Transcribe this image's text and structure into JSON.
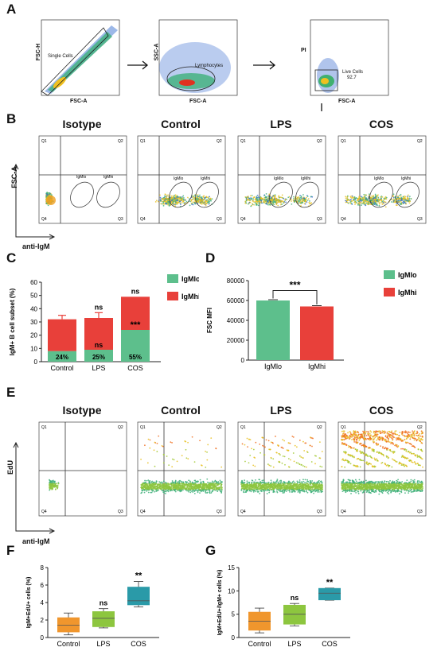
{
  "panels": {
    "A": "A",
    "B": "B",
    "C": "C",
    "D": "D",
    "E": "E",
    "F": "F",
    "G": "G"
  },
  "panelA": {
    "plot1": {
      "ylabel": "FSC-H",
      "xlabel": "FSC-A",
      "gate": "Single Cells"
    },
    "plot2": {
      "ylabel": "SSC-A",
      "xlabel": "FSC-A",
      "gate": "Lymphocytes"
    },
    "plot3": {
      "ylabel": "PI",
      "xlabel": "FSC-A",
      "gate": "Live Cells",
      "gate_value": "92.7"
    }
  },
  "panelB": {
    "titles": [
      "Isotype",
      "Control",
      "LPS",
      "COS"
    ],
    "ylabel": "FSC-A",
    "xlabel": "anti-IgM",
    "quadrants": [
      "Q1",
      "Q2",
      "Q3",
      "Q4"
    ],
    "gates": [
      "IgMlo",
      "IgMhi"
    ]
  },
  "panelE": {
    "titles": [
      "Isotype",
      "Control",
      "LPS",
      "COS"
    ],
    "ylabel": "EdU",
    "xlabel": "anti-IgM",
    "quadrants": [
      "Q1",
      "Q2",
      "Q3",
      "Q4"
    ]
  },
  "chart_data": [
    {
      "id": "C",
      "type": "bar",
      "categories": [
        "Control",
        "LPS",
        "COS"
      ],
      "ylabel": "IgM+ B cell subset (%)",
      "ylim": [
        0,
        60
      ],
      "yticks": [
        "0",
        "10",
        "20",
        "30",
        "40",
        "50",
        "60"
      ],
      "series": [
        {
          "name": "IgMlo",
          "color": "#5dbf8c",
          "values": [
            8,
            9,
            24
          ],
          "labels": [
            "24%",
            "25%",
            "55%"
          ]
        },
        {
          "name": "IgMhi",
          "color": "#e8403a",
          "values": [
            24,
            24,
            25
          ],
          "err": [
            3,
            4,
            0
          ]
        }
      ],
      "annotations": [
        {
          "category": "LPS",
          "text": "ns",
          "pos": "top"
        },
        {
          "category": "COS",
          "text": "ns",
          "pos": "top"
        },
        {
          "category": "LPS",
          "text": "ns",
          "pos": "inner"
        },
        {
          "category": "COS",
          "text": "***",
          "pos": "inner"
        }
      ],
      "legend": [
        "IgMlo",
        "IgMhi"
      ]
    },
    {
      "id": "D",
      "type": "bar",
      "categories": [
        "IgMlo",
        "IgMhi"
      ],
      "ylabel": "FSC MFI",
      "ylim": [
        0,
        80000
      ],
      "yticks": [
        "0",
        "20000",
        "40000",
        "60000",
        "80000"
      ],
      "values": [
        60000,
        54000
      ],
      "colors": [
        "#5dbf8c",
        "#e8403a"
      ],
      "annotation": "***",
      "legend": [
        "IgMlo",
        "IgMhi"
      ]
    },
    {
      "id": "F",
      "type": "box",
      "categories": [
        "Control",
        "LPS",
        "COS"
      ],
      "ylabel": "IgM+EdU+ cells (%)",
      "ylim": [
        0,
        8
      ],
      "yticks": [
        "0",
        "2",
        "4",
        "6",
        "8"
      ],
      "colors": [
        "#f0962d",
        "#8dc63f",
        "#2a9aa8"
      ],
      "boxes": [
        {
          "min": 0.3,
          "q1": 0.6,
          "median": 1.4,
          "q3": 2.3,
          "max": 2.8
        },
        {
          "min": 1.1,
          "q1": 1.2,
          "median": 2.2,
          "q3": 3.0,
          "max": 3.3
        },
        {
          "min": 3.5,
          "q1": 3.7,
          "median": 4.2,
          "q3": 5.8,
          "max": 6.4
        }
      ],
      "annotations": [
        "",
        "ns",
        "**"
      ]
    },
    {
      "id": "G",
      "type": "box",
      "categories": [
        "Control",
        "LPS",
        "COS"
      ],
      "ylabel": "IgM+EdU+/IgM+ cells (%)",
      "ylim": [
        0,
        15
      ],
      "yticks": [
        "0",
        "5",
        "10",
        "15"
      ],
      "colors": [
        "#f0962d",
        "#8dc63f",
        "#2a9aa8"
      ],
      "boxes": [
        {
          "min": 1.0,
          "q1": 1.5,
          "median": 3.5,
          "q3": 5.5,
          "max": 6.3
        },
        {
          "min": 2.5,
          "q1": 2.8,
          "median": 5.0,
          "q3": 7.0,
          "max": 7.3
        },
        {
          "min": 8.0,
          "q1": 8.0,
          "median": 9.5,
          "q3": 10.6,
          "max": 10.6
        }
      ],
      "annotations": [
        "",
        "ns",
        "**"
      ]
    }
  ]
}
